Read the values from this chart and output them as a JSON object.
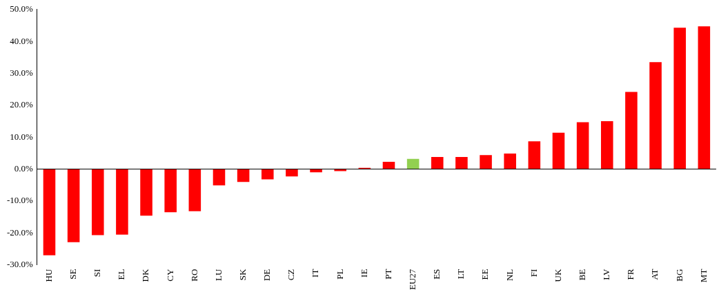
{
  "chart_data": {
    "type": "bar",
    "categories": [
      "HU",
      "SE",
      "SI",
      "EL",
      "DK",
      "CY",
      "RO",
      "LU",
      "SK",
      "DE",
      "CZ",
      "IT",
      "PL",
      "IE",
      "PT",
      "EU27",
      "ES",
      "LT",
      "EE",
      "NL",
      "FI",
      "UK",
      "BE",
      "LV",
      "FR",
      "AT",
      "BG",
      "MT"
    ],
    "values": [
      -27.0,
      -22.9,
      -20.7,
      -20.5,
      -14.6,
      -13.5,
      -13.2,
      -5.1,
      -4.0,
      -3.2,
      -2.3,
      -1.0,
      -0.6,
      0.4,
      2.3,
      3.2,
      3.8,
      3.8,
      4.4,
      4.9,
      8.7,
      11.4,
      14.7,
      15.0,
      24.2,
      33.5,
      44.3,
      44.7
    ],
    "colors": [
      "#ff0000",
      "#ff0000",
      "#ff0000",
      "#ff0000",
      "#ff0000",
      "#ff0000",
      "#ff0000",
      "#ff0000",
      "#ff0000",
      "#ff0000",
      "#ff0000",
      "#ff0000",
      "#ff0000",
      "#ff0000",
      "#ff0000",
      "#92d050",
      "#ff0000",
      "#ff0000",
      "#ff0000",
      "#ff0000",
      "#ff0000",
      "#ff0000",
      "#ff0000",
      "#ff0000",
      "#ff0000",
      "#ff0000",
      "#ff0000",
      "#ff0000"
    ],
    "ylim": [
      -30,
      50
    ],
    "yticks": [
      {
        "value": -30,
        "label": "-30.0%"
      },
      {
        "value": -20,
        "label": "-20.0%"
      },
      {
        "value": -10,
        "label": "-10.0%"
      },
      {
        "value": 0,
        "label": "0.0%"
      },
      {
        "value": 10,
        "label": "10.0%"
      },
      {
        "value": 20,
        "label": "20.0%"
      },
      {
        "value": 30,
        "label": "30.0%"
      },
      {
        "value": 40,
        "label": "40.0%"
      },
      {
        "value": 50,
        "label": "50.0%"
      }
    ],
    "legend": false
  }
}
